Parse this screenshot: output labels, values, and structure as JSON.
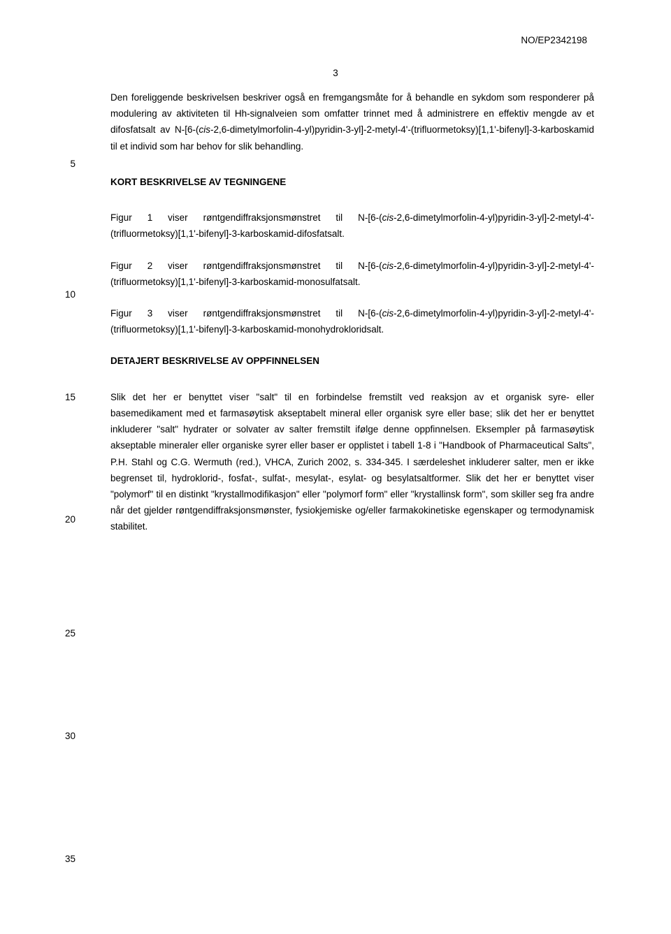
{
  "header": {
    "docId": "NO/EP2342198"
  },
  "pageNumber": "3",
  "lineNumbers": {
    "n5": "5",
    "n10": "10",
    "n15": "15",
    "n20": "20",
    "n25": "25",
    "n30": "30",
    "n35": "35"
  },
  "body": {
    "para1a": "Den foreliggende beskrivelsen beskriver også en fremgangsmåte for å behandle en sykdom som responderer på modulering av aktiviteten til Hh-signalveien som omfatter trinnet med å administrere en effektiv mengde av et difosfatsalt av N-[6-(",
    "para1b": "cis",
    "para1c": "-2,6-dimetylmorfolin-4-yl)pyridin-3-yl]-2-metyl-4'-(trifluormetoksy)[1,1'-bifenyl]-3-karboskamid til et individ som har behov for slik behandling.",
    "heading1": "KORT BESKRIVELSE AV TEGNINGENE",
    "para2a": "Figur 1 viser røntgendiffraksjonsmønstret til N-[6-(",
    "para2b": "cis",
    "para2c": "-2,6-dimetylmorfolin-4-yl)pyridin-3-yl]-2-metyl-4'-(trifluormetoksy)[1,1'-bifenyl]-3-karboskamid-difosfatsalt.",
    "para3a": "Figur 2 viser røntgendiffraksjonsmønstret til N-[6-(",
    "para3b": "cis",
    "para3c": "-2,6-dimetylmorfolin-4-yl)pyridin-3-yl]-2-metyl-4'-(trifluormetoksy)[1,1'-bifenyl]-3-karboskamid-monosulfatsalt.",
    "para4a": "Figur 3 viser røntgendiffraksjonsmønstret til N-[6-(",
    "para4b": "cis",
    "para4c": "-2,6-dimetylmorfolin-4-yl)pyridin-3-yl]-2-metyl-4'-(trifluormetoksy)[1,1'-bifenyl]-3-karboskamid-monohydrokloridsalt.",
    "heading2": "DETAJERT BESKRIVELSE AV OPPFINNELSEN",
    "para5": "Slik det her er benyttet viser \"salt\" til en forbindelse fremstilt ved reaksjon av et organisk syre- eller basemedikament med et farmasøytisk akseptabelt mineral eller organisk syre eller base; slik det her er benyttet inkluderer \"salt\" hydrater or solvater av salter fremstilt ifølge denne oppfinnelsen. Eksempler på farmasøytisk akseptable mineraler eller organiske syrer eller baser er opplistet i tabell 1-8 i \"Handbook of Pharmaceutical Salts\", P.H. Stahl og C.G. Wermuth (red.), VHCA, Zurich 2002, s. 334-345. I særdeleshet inkluderer salter, men er ikke begrenset til, hydroklorid-, fosfat-, sulfat-, mesylat-, esylat- og besylatsaltformer. Slik det her er benyttet viser \"polymorf\" til en distinkt \"krystallmodifikasjon\" eller \"polymorf form\" eller \"krystallinsk form\", som skiller seg fra andre når det gjelder røntgendiffraksjonsmønster, fysiokjemiske og/eller farmakokinetiske egenskaper og termodynamisk stabilitet."
  }
}
